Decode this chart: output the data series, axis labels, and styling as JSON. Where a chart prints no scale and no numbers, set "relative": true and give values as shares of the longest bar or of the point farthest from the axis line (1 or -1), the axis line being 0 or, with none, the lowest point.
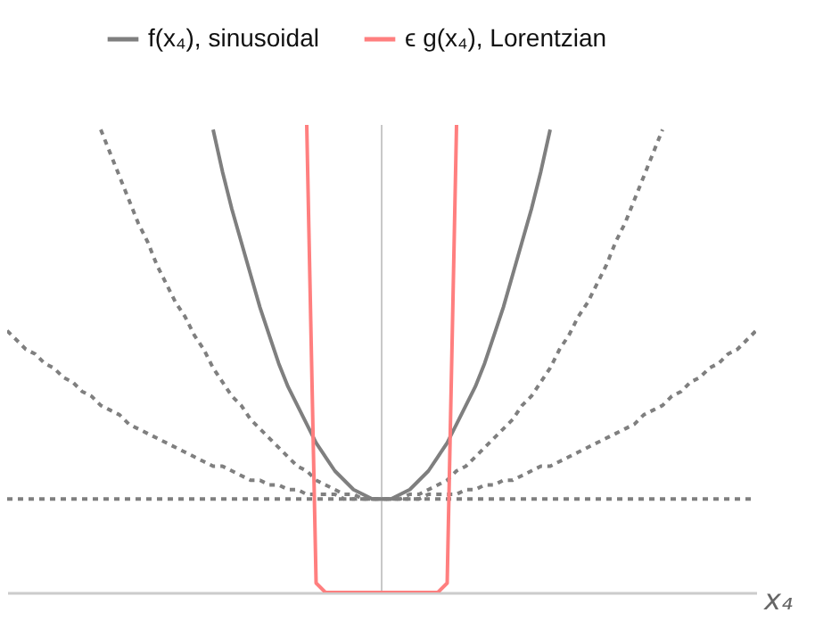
{
  "chart_data": {
    "type": "line",
    "relative": true,
    "xlabel": "x₄",
    "legend": "top",
    "categories": [
      null,
      null,
      null,
      null,
      null,
      null,
      null,
      null,
      null,
      null,
      null,
      null,
      null,
      null,
      null,
      null,
      null,
      null,
      null,
      null,
      null,
      null,
      null,
      null,
      null,
      null,
      null,
      null,
      null,
      null,
      null,
      null,
      null,
      null,
      null,
      null,
      null,
      null,
      null,
      null,
      null,
      null,
      null,
      null,
      null,
      null,
      null,
      null,
      null,
      null,
      null,
      null,
      null,
      null,
      null,
      null,
      null,
      null,
      null,
      null,
      null,
      null,
      null,
      null,
      null,
      null,
      null,
      null,
      null,
      null,
      null,
      null,
      null,
      null,
      null,
      null,
      null,
      null,
      null,
      null,
      null
    ],
    "series": [
      {
        "color": "#7f7f7f",
        "line_style": "dotted",
        "values": [
          0.56,
          0.54,
          0.52,
          0.51,
          0.49,
          0.48,
          0.46,
          0.45,
          0.43,
          0.42,
          0.4,
          0.39,
          0.38,
          0.36,
          0.35,
          0.34,
          0.33,
          0.32,
          0.31,
          0.3,
          0.29,
          0.28,
          0.27,
          0.27,
          0.26,
          0.25,
          0.24,
          0.24,
          0.23,
          0.23,
          0.22,
          0.22,
          0.21,
          0.21,
          0.21,
          0.21,
          0.2,
          0.2,
          0.2,
          0.2,
          0.2,
          0.2,
          0.2,
          0.2,
          0.2,
          0.21,
          0.21,
          0.21,
          0.21,
          0.22,
          0.22,
          0.23,
          0.23,
          0.24,
          0.24,
          0.25,
          0.26,
          0.27,
          0.27,
          0.28,
          0.29,
          0.3,
          0.31,
          0.32,
          0.33,
          0.34,
          0.35,
          0.36,
          0.38,
          0.39,
          0.4,
          0.42,
          0.43,
          0.45,
          0.46,
          0.48,
          0.49,
          0.51,
          0.52,
          0.54,
          0.56
        ]
      },
      {
        "color": "#7f7f7f",
        "line_style": "dotted",
        "values": [
          null,
          null,
          null,
          null,
          null,
          null,
          null,
          null,
          null,
          null,
          0.99,
          0.94,
          0.89,
          0.84,
          0.79,
          0.75,
          0.7,
          0.66,
          0.62,
          0.59,
          0.55,
          0.52,
          0.48,
          0.45,
          0.42,
          0.4,
          0.37,
          0.35,
          0.33,
          0.31,
          0.29,
          0.27,
          0.26,
          0.24,
          0.23,
          0.22,
          0.21,
          0.21,
          0.2,
          0.2,
          0.2,
          0.2,
          0.2,
          0.21,
          0.21,
          0.22,
          0.23,
          0.24,
          0.26,
          0.27,
          0.29,
          0.31,
          0.33,
          0.35,
          0.37,
          0.4,
          0.42,
          0.45,
          0.48,
          0.52,
          0.55,
          0.59,
          0.62,
          0.66,
          0.7,
          0.75,
          0.79,
          0.84,
          0.89,
          0.94,
          0.99,
          null,
          null,
          null,
          null,
          null,
          null,
          null,
          null,
          null,
          null
        ]
      },
      {
        "color": "#7f7f7f",
        "line_style": "dotted",
        "values": [
          0.2,
          0.2,
          0.2,
          0.2,
          0.2,
          0.2,
          0.2,
          0.2,
          0.2,
          0.2,
          0.2,
          0.2,
          0.2,
          0.2,
          0.2,
          0.2,
          0.2,
          0.2,
          0.2,
          0.2,
          0.2,
          0.2,
          0.2,
          0.2,
          0.2,
          0.2,
          0.2,
          0.2,
          0.2,
          0.2,
          0.2,
          0.2,
          0.2,
          0.2,
          0.2,
          0.2,
          0.2,
          0.2,
          0.2,
          0.2,
          0.2,
          0.2,
          0.2,
          0.2,
          0.2,
          0.2,
          0.2,
          0.2,
          0.2,
          0.2,
          0.2,
          0.2,
          0.2,
          0.2,
          0.2,
          0.2,
          0.2,
          0.2,
          0.2,
          0.2,
          0.2,
          0.2,
          0.2,
          0.2,
          0.2,
          0.2,
          0.2,
          0.2,
          0.2,
          0.2,
          0.2,
          0.2,
          0.2,
          0.2,
          0.2,
          0.2,
          0.2,
          0.2,
          0.2,
          0.2,
          0.2
        ]
      },
      {
        "name": "f(x₄), sinusoidal",
        "color": "#7f7f7f",
        "line_style": "solid",
        "values": [
          null,
          null,
          null,
          null,
          null,
          null,
          null,
          null,
          null,
          null,
          null,
          null,
          null,
          null,
          null,
          null,
          null,
          null,
          null,
          null,
          null,
          null,
          0.99,
          0.9,
          0.82,
          0.75,
          0.68,
          0.61,
          0.55,
          0.49,
          0.44,
          0.4,
          0.36,
          0.32,
          0.29,
          0.26,
          0.24,
          0.22,
          0.21,
          0.2,
          0.2,
          0.2,
          0.21,
          0.22,
          0.24,
          0.26,
          0.29,
          0.32,
          0.36,
          0.4,
          0.44,
          0.49,
          0.55,
          0.61,
          0.68,
          0.75,
          0.82,
          0.9,
          0.99,
          null,
          null,
          null,
          null,
          null,
          null,
          null,
          null,
          null,
          null,
          null,
          null,
          null,
          null,
          null,
          null,
          null,
          null,
          null,
          null,
          null,
          null
        ]
      },
      {
        "name": "ϵ g(x₄), Lorentzian",
        "color": "#ff7f7f",
        "line_style": "solid",
        "values": [
          null,
          null,
          null,
          null,
          null,
          null,
          null,
          null,
          null,
          null,
          null,
          null,
          null,
          null,
          null,
          null,
          null,
          null,
          null,
          null,
          null,
          null,
          null,
          null,
          null,
          null,
          null,
          null,
          null,
          null,
          null,
          null,
          1,
          0.02,
          0,
          0,
          0,
          0,
          0,
          0,
          0,
          0,
          0,
          0,
          0,
          0,
          0,
          0.02,
          1,
          null,
          null,
          null,
          null,
          null,
          null,
          null,
          null,
          null,
          null,
          null,
          null,
          null,
          null,
          null,
          null,
          null,
          null,
          null,
          null,
          null,
          null,
          null,
          null,
          null,
          null,
          null,
          null,
          null,
          null,
          null,
          null
        ]
      }
    ]
  }
}
